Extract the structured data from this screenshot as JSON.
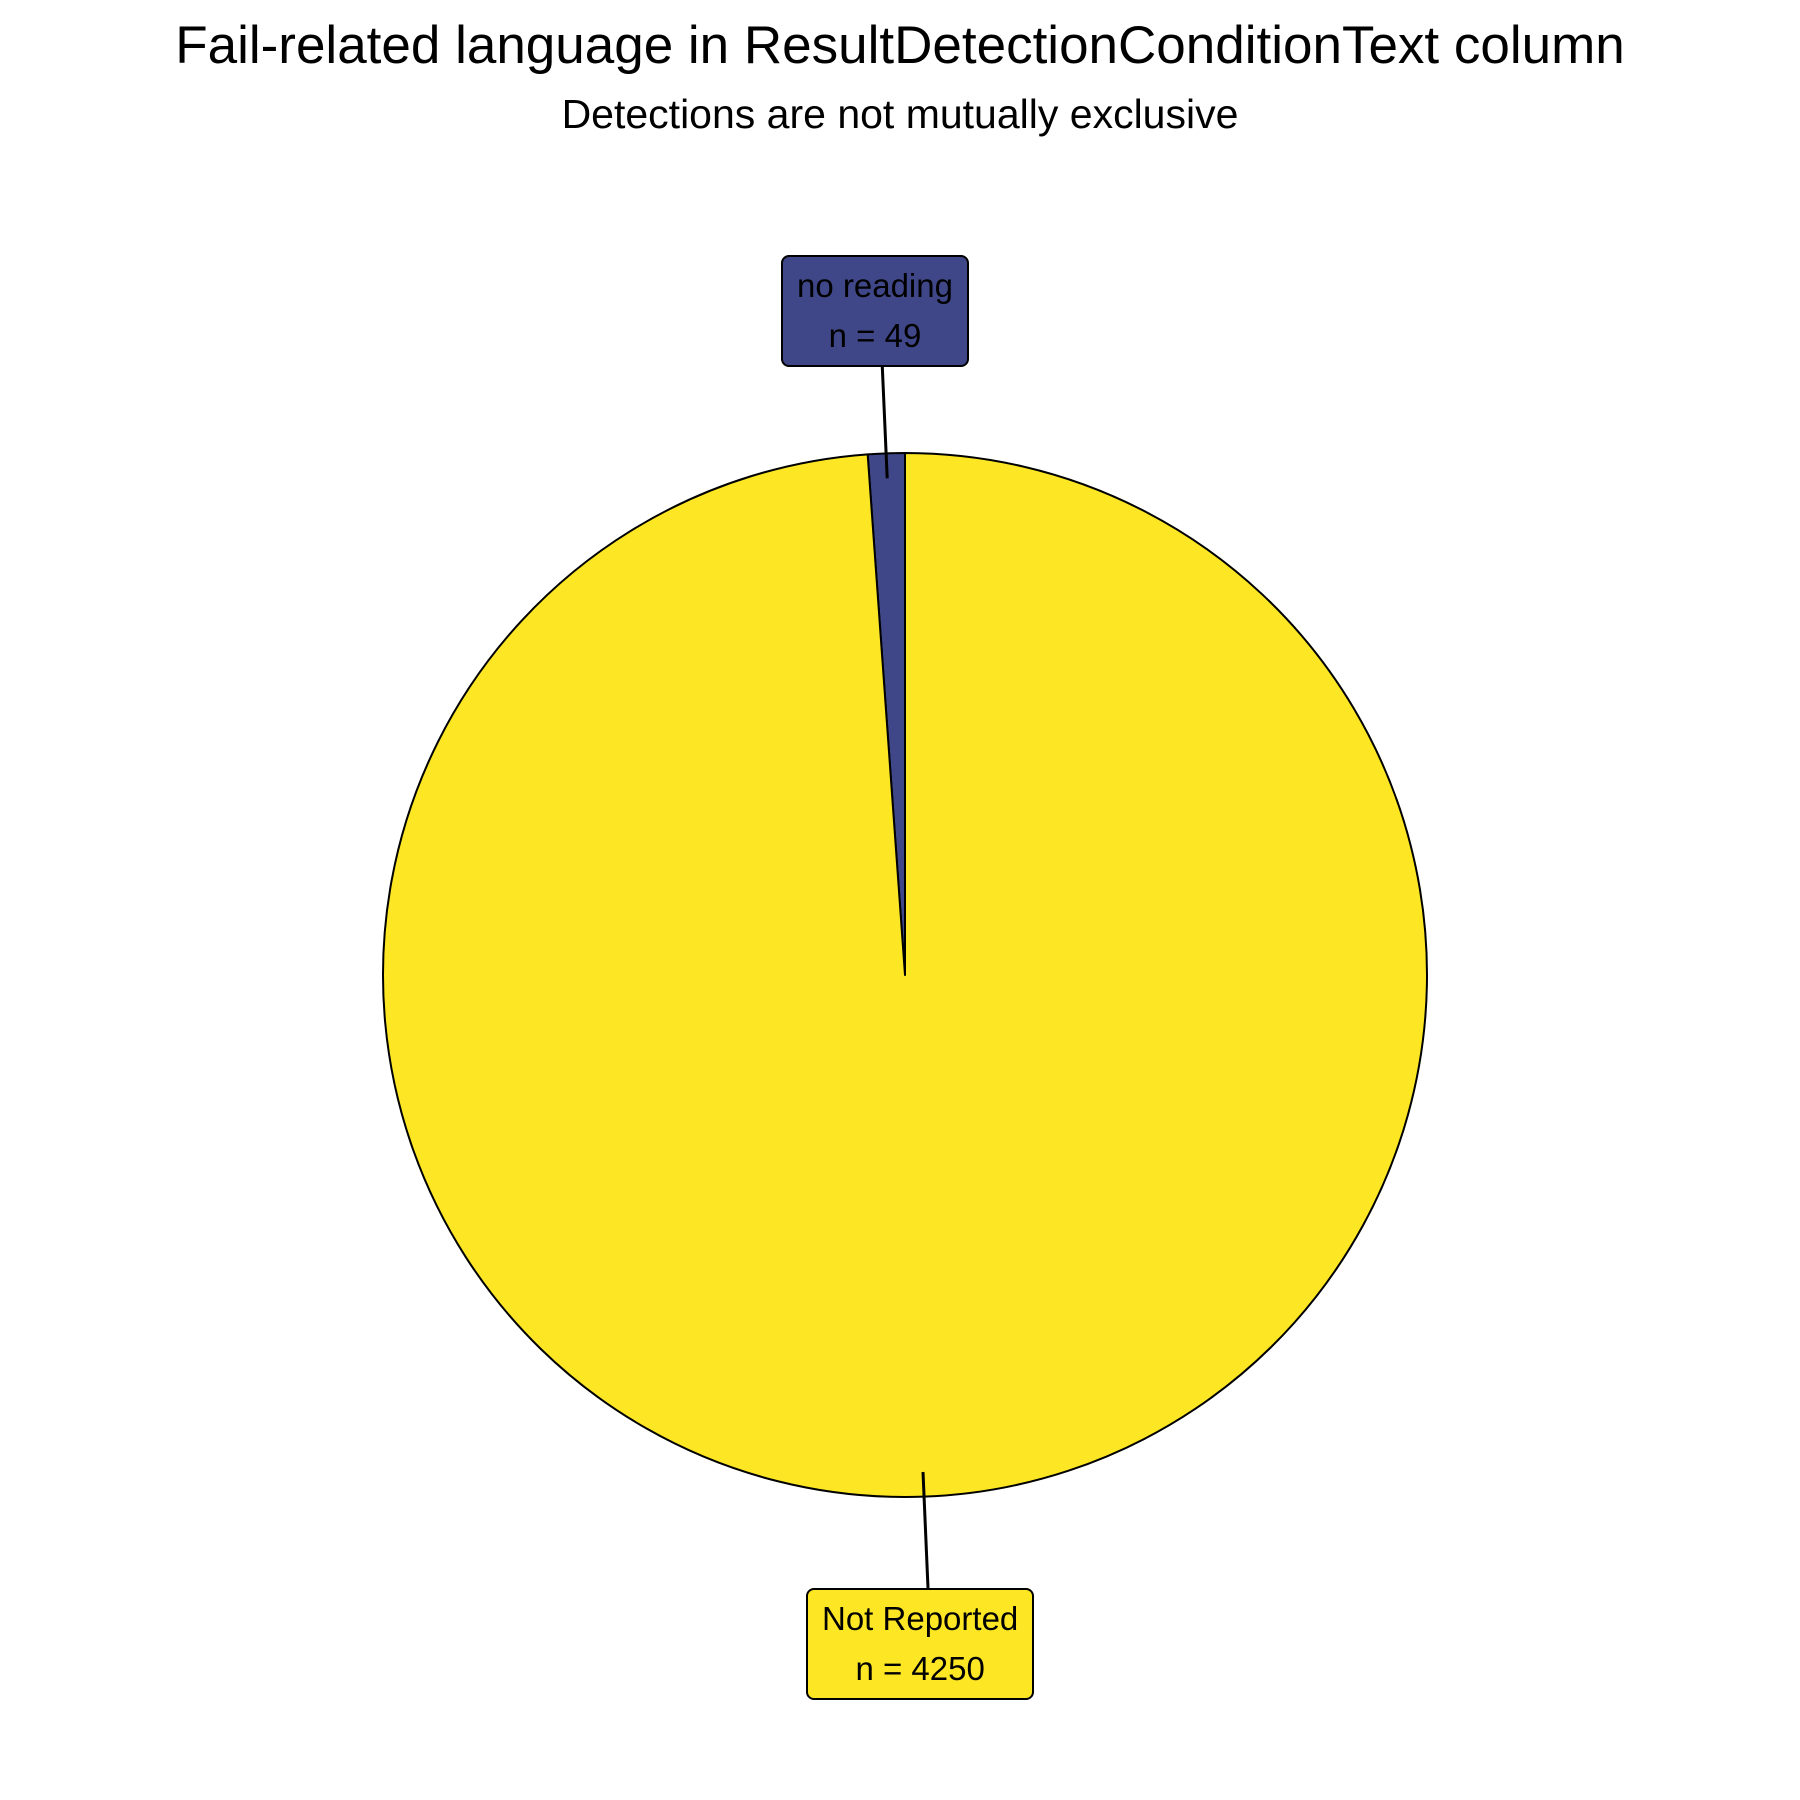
{
  "chart_data": {
    "type": "pie",
    "title": "Fail-related language in ResultDetectionConditionText column",
    "subtitle": "Detections are not mutually exclusive",
    "slices": [
      {
        "label": "no reading",
        "value": 49,
        "count_text": "n = 49",
        "color": "#404788",
        "text_color": "#000000"
      },
      {
        "label": "Not Reported",
        "value": 4250,
        "count_text": "n = 4250",
        "color": "#FDE725",
        "text_color": "#000000"
      }
    ]
  }
}
